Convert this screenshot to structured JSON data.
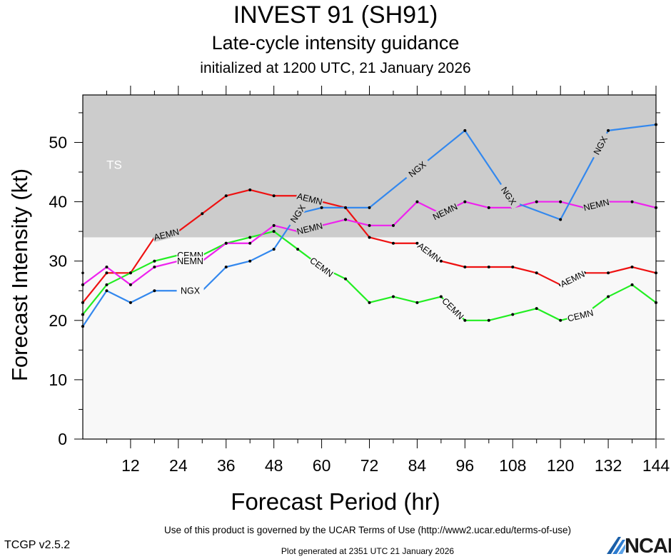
{
  "header": {
    "title": "INVEST 91 (SH91)",
    "subtitle": "Late-cycle intensity guidance",
    "init_line": "initialized at 1200 UTC, 21 January 2026"
  },
  "footer": {
    "terms": "Use of this product is governed by the UCAR Terms of Use (http://www2.ucar.edu/terms-of-use)",
    "version": "TCGP v2.5.2",
    "generated": "Plot generated at 2351 UTC   21 January 2026",
    "logo": "NCAR"
  },
  "chart_data": {
    "type": "line",
    "xlabel": "Forecast Period (hr)",
    "ylabel": "Forecast Intensity (kt)",
    "xlim": [
      0,
      144
    ],
    "ylim": [
      0,
      58
    ],
    "xticks": [
      12,
      24,
      36,
      48,
      60,
      72,
      84,
      96,
      108,
      120,
      132,
      144
    ],
    "yticks": [
      0,
      10,
      20,
      30,
      40,
      50
    ],
    "ts_threshold": 34,
    "ts_label": "TS",
    "colors": {
      "ts_band": "#cccccc",
      "below_band": "#f8f8f8",
      "point": "#000000",
      "ts_label": "#ffffff"
    },
    "x": [
      0,
      6,
      12,
      18,
      24,
      30,
      36,
      42,
      48,
      54,
      60,
      66,
      72,
      78,
      84,
      90,
      96,
      102,
      108,
      114,
      120,
      126,
      132,
      138,
      144
    ],
    "series": [
      {
        "name": "AEMN",
        "color": "#ee1111",
        "values": [
          23,
          28,
          28,
          34,
          35,
          38,
          41,
          42,
          41,
          41,
          40,
          39,
          34,
          33,
          33,
          30,
          29,
          29,
          29,
          28,
          26,
          28,
          28,
          29,
          28
        ],
        "label_hours": [
          21,
          57,
          87,
          123
        ]
      },
      {
        "name": "CEMN",
        "color": "#22ee22",
        "values": [
          21,
          26,
          28,
          30,
          31,
          31,
          33,
          34,
          35,
          32,
          29,
          27,
          23,
          24,
          23,
          24,
          20,
          20,
          21,
          22,
          20,
          21,
          24,
          26,
          23
        ],
        "label_hours": [
          27,
          60,
          93,
          125
        ]
      },
      {
        "name": "NEMN",
        "color": "#ee22ee",
        "values": [
          26,
          29,
          26,
          29,
          30,
          30,
          33,
          33,
          36,
          35,
          36,
          37,
          36,
          36,
          40,
          38,
          40,
          39,
          39,
          40,
          40,
          39,
          40,
          40,
          39
        ],
        "label_hours": [
          27,
          57,
          91,
          129
        ]
      },
      {
        "name": "NGX",
        "color": "#3388ee",
        "values": [
          19,
          25,
          23,
          25,
          25,
          25,
          29,
          30,
          32,
          38,
          39,
          39,
          39,
          null,
          null,
          null,
          52,
          null,
          40,
          null,
          37,
          null,
          52,
          null,
          53
        ],
        "label_hours": [
          27,
          54,
          84,
          107,
          130
        ]
      }
    ],
    "edge_markers": [
      28,
      23,
      21,
      19,
      26
    ]
  }
}
